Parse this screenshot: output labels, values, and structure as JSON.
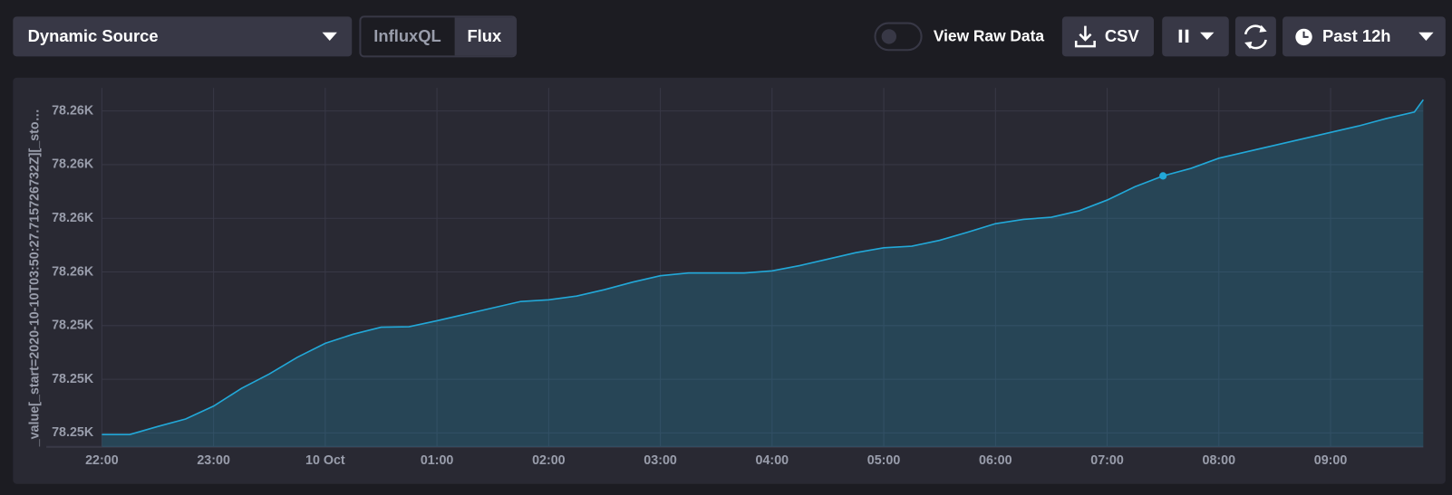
{
  "toolbar": {
    "source": "Dynamic Source",
    "languages": [
      "InfluxQL",
      "Flux"
    ],
    "raw_toggle": "View Raw Data",
    "csv": "CSV",
    "time_range": "Past 12h"
  },
  "chart_data": {
    "type": "area",
    "y_label": "_value[_start=2020-10-10T03:50:27.715726732Z][_sto…",
    "x": [
      22,
      22.25,
      22.5,
      22.75,
      23,
      23.25,
      23.5,
      23.75,
      24,
      24.25,
      24.5,
      24.75,
      25,
      25.25,
      25.5,
      25.75,
      26,
      26.25,
      26.5,
      26.75,
      27,
      27.25,
      27.5,
      27.75,
      28,
      28.25,
      28.5,
      28.75,
      29,
      29.25,
      29.5,
      29.75,
      30,
      30.25,
      30.5,
      30.75,
      31,
      31.25,
      31.5,
      31.75,
      32,
      32.25,
      32.5,
      32.75,
      33,
      33.25,
      33.5,
      33.75,
      33.83
    ],
    "values": [
      78251.97,
      78251.97,
      78252.12,
      78252.26,
      78252.5,
      78252.83,
      78253.1,
      78253.41,
      78253.67,
      78253.84,
      78253.97,
      78253.98,
      78254.09,
      78254.21,
      78254.33,
      78254.45,
      78254.48,
      78254.55,
      78254.67,
      78254.81,
      78254.93,
      78254.98,
      78254.98,
      78254.98,
      78255.02,
      78255.12,
      78255.24,
      78255.36,
      78255.45,
      78255.48,
      78255.59,
      78255.74,
      78255.9,
      78255.98,
      78256.02,
      78256.14,
      78256.34,
      78256.59,
      78256.79,
      78256.93,
      78257.12,
      78257.24,
      78257.36,
      78257.48,
      78257.6,
      78257.72,
      78257.86,
      78257.98,
      78258.21
    ],
    "color": "#22a8d8",
    "highlight_index": 38,
    "xlim": [
      22,
      33.83
    ],
    "xticks": [
      {
        "value": 22,
        "label": "22:00"
      },
      {
        "value": 23,
        "label": "23:00"
      },
      {
        "value": 24,
        "label": "10 Oct"
      },
      {
        "value": 25,
        "label": "01:00"
      },
      {
        "value": 26,
        "label": "02:00"
      },
      {
        "value": 27,
        "label": "03:00"
      },
      {
        "value": 28,
        "label": "04:00"
      },
      {
        "value": 29,
        "label": "05:00"
      },
      {
        "value": 30,
        "label": "06:00"
      },
      {
        "value": 31,
        "label": "07:00"
      },
      {
        "value": 32,
        "label": "08:00"
      },
      {
        "value": 33,
        "label": "09:00"
      }
    ],
    "ylim": [
      78251.74,
      78258.43
    ],
    "yticks": [
      {
        "value": 78252,
        "label": "78.25K"
      },
      {
        "value": 78253,
        "label": "78.25K"
      },
      {
        "value": 78254,
        "label": "78.25K"
      },
      {
        "value": 78255,
        "label": "78.26K"
      },
      {
        "value": 78256,
        "label": "78.26K"
      },
      {
        "value": 78257,
        "label": "78.26K"
      },
      {
        "value": 78258,
        "label": "78.26K"
      }
    ],
    "grid": true
  }
}
